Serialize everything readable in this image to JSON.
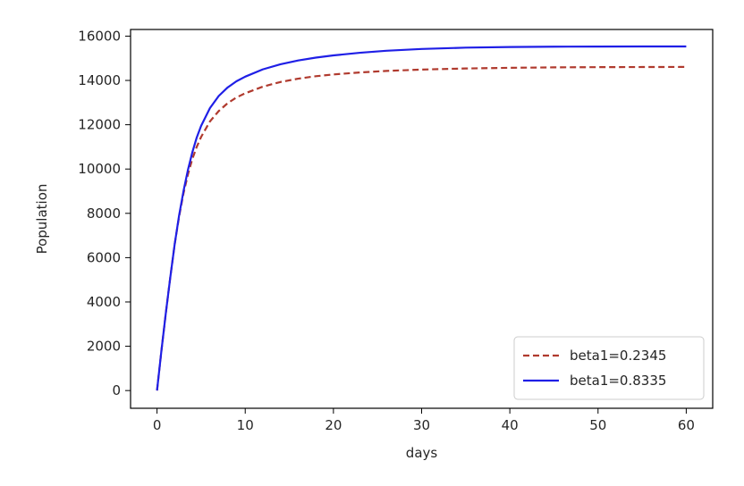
{
  "chart_data": {
    "type": "line",
    "title": "",
    "xlabel": "days",
    "ylabel": "Population",
    "xlim": [
      -3,
      63
    ],
    "ylim": [
      -800,
      16300
    ],
    "xticks": [
      0,
      10,
      20,
      30,
      40,
      50,
      60
    ],
    "yticks": [
      0,
      2000,
      4000,
      6000,
      8000,
      10000,
      12000,
      14000,
      16000
    ],
    "grid": false,
    "legend_position": "lower-right",
    "series": [
      {
        "name": "beta1=0.2345",
        "color": "#b03a2e",
        "style": "dashed",
        "x": [
          0,
          0.5,
          1,
          1.5,
          2,
          2.5,
          3,
          3.5,
          4,
          4.5,
          5,
          6,
          7,
          8,
          9,
          10,
          12,
          14,
          16,
          18,
          20,
          23,
          26,
          30,
          35,
          40,
          45,
          50,
          55,
          60
        ],
        "y": [
          0,
          1800,
          3500,
          5100,
          6600,
          7850,
          8900,
          9750,
          10450,
          11000,
          11450,
          12150,
          12620,
          12970,
          13230,
          13420,
          13720,
          13930,
          14080,
          14190,
          14270,
          14360,
          14430,
          14490,
          14540,
          14570,
          14590,
          14600,
          14605,
          14610
        ]
      },
      {
        "name": "beta1=0.8335",
        "color": "#1f1fe6",
        "style": "solid",
        "x": [
          0,
          0.5,
          1,
          1.5,
          2,
          2.5,
          3,
          3.5,
          4,
          4.5,
          5,
          6,
          7,
          8,
          9,
          10,
          12,
          14,
          16,
          18,
          20,
          23,
          26,
          30,
          35,
          40,
          45,
          50,
          55,
          60
        ],
        "y": [
          0,
          1800,
          3500,
          5100,
          6600,
          7900,
          9000,
          9950,
          10750,
          11420,
          11950,
          12750,
          13300,
          13680,
          13960,
          14170,
          14500,
          14730,
          14900,
          15030,
          15130,
          15250,
          15340,
          15420,
          15480,
          15510,
          15525,
          15530,
          15533,
          15535
        ]
      }
    ]
  }
}
